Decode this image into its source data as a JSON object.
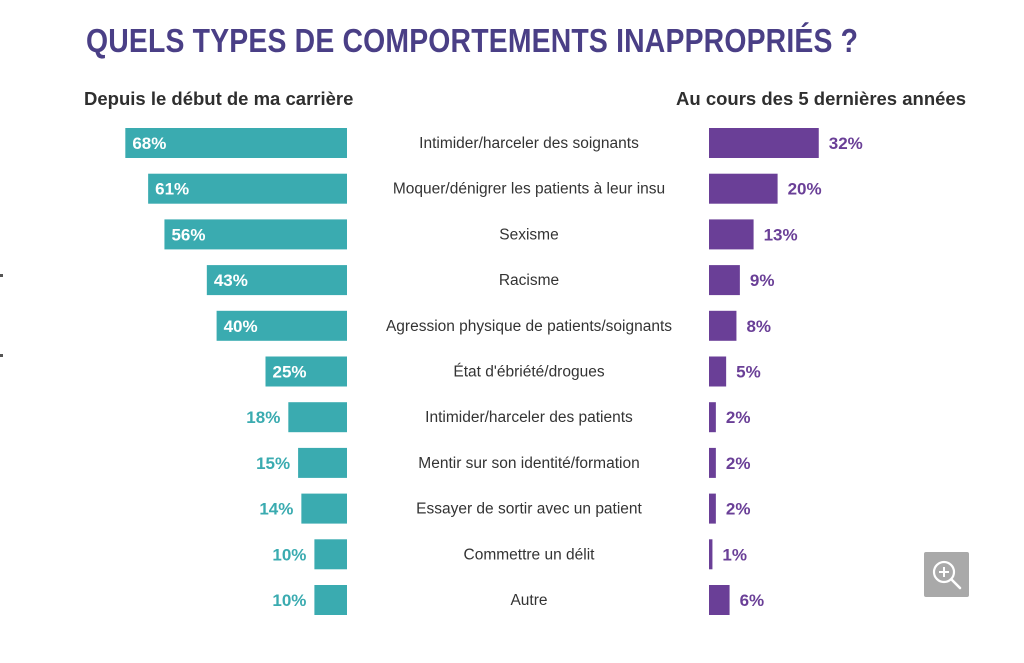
{
  "title": "QUELS TYPES DE COMPORTEMENTS INAPPROPRIÉS ?",
  "left_heading": "Depuis le début de ma carrière",
  "right_heading": "Au cours des 5 dernières années",
  "colors": {
    "left": "#3aabb0",
    "right": "#6a3f97",
    "title": "#4a3f86"
  },
  "zoom_icon": "zoom-in-icon",
  "chart_data": {
    "type": "bar",
    "categories": [
      "Intimider/harceler des soignants",
      "Moquer/dénigrer les patients à leur insu",
      "Sexisme",
      "Racisme",
      "Agression physique de patients/soignants",
      "État d'ébriété/drogues",
      "Intimider/harceler des patients",
      "Mentir sur son identité/formation",
      "Essayer de sortir avec un patient",
      "Commettre un délit",
      "Autre"
    ],
    "series": [
      {
        "name": "Depuis le début de ma carrière",
        "values": [
          68,
          61,
          56,
          43,
          40,
          25,
          18,
          15,
          14,
          10,
          10
        ],
        "labels": [
          "68%",
          "61%",
          "56%",
          "43%",
          "40%",
          "25%",
          "18%",
          "15%",
          "14%",
          "10%",
          "10%"
        ]
      },
      {
        "name": "Au cours des 5 dernières années",
        "values": [
          32,
          20,
          13,
          9,
          8,
          5,
          2,
          2,
          2,
          1,
          6
        ],
        "labels": [
          "32%",
          "20%",
          "13%",
          "9%",
          "8%",
          "5%",
          "2%",
          "2%",
          "2%",
          "1%",
          "6%"
        ]
      }
    ],
    "title": "QUELS TYPES DE COMPORTEMENTS INAPPROPRIÉS ?",
    "grid": false,
    "legend": "none"
  }
}
